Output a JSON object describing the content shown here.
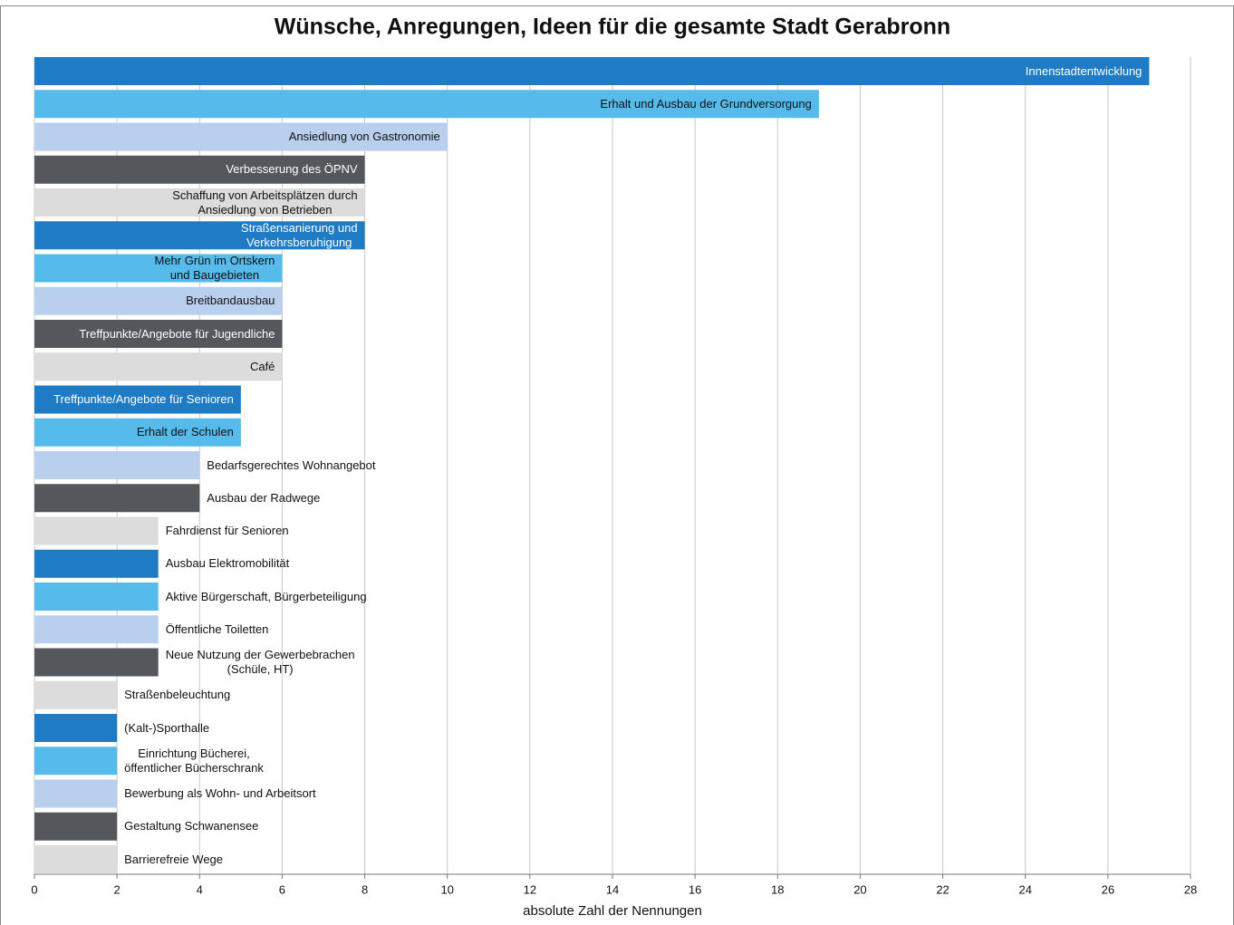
{
  "chart_data": {
    "type": "barh",
    "title": "Wünsche, Anregungen, Ideen für die gesamte Stadt Gerabronn",
    "xlabel": "absolute Zahl der Nennungen",
    "categories": [
      "Innenstadtentwicklung",
      "Erhalt und Ausbau der Grundversorgung",
      "Ansiedlung von Gastronomie",
      "Verbesserung des ÖPNV",
      "Schaffung von Arbeitsplätzen durch\nAnsiedlung von Betrieben",
      "Straßensanierung und\nVerkehrsberuhigung",
      "Mehr Grün im Ortskern\nund Baugebieten",
      "Breitbandausbau",
      "Treffpunkte/Angebote für Jugendliche",
      "Café",
      "Treffpunkte/Angebote für Senioren",
      "Erhalt der Schulen",
      "Bedarfsgerechtes Wohnangebot",
      "Ausbau der Radwege",
      "Fahrdienst für Senioren",
      "Ausbau Elektromobilität",
      "Aktive Bürgerschaft, Bürgerbeteiligung",
      "Öffentliche Toiletten",
      "Neue Nutzung der Gewerbebrachen\n(Schüle, HT)",
      "Straßenbeleuchtung",
      "(Kalt-)Sporthalle",
      "Einrichtung Bücherei,\nöffentlicher Bücherschrank",
      "Bewerbung als Wohn- und Arbeitsort",
      "Gestaltung Schwanensee",
      "Barrierefreie Wege"
    ],
    "values": [
      27,
      19,
      10,
      8,
      8,
      8,
      6,
      6,
      6,
      6,
      5,
      5,
      4,
      4,
      3,
      3,
      3,
      3,
      3,
      2,
      2,
      2,
      2,
      2,
      2
    ],
    "colors": [
      "#1f7bc4",
      "#56bbea",
      "#b9cfee",
      "#54575c",
      "#dcdcdc"
    ],
    "xlim": [
      0,
      28
    ],
    "xticks": [
      0,
      2,
      4,
      6,
      8,
      10,
      12,
      14,
      16,
      18,
      20,
      22,
      24,
      26,
      28
    ],
    "grid": true
  }
}
